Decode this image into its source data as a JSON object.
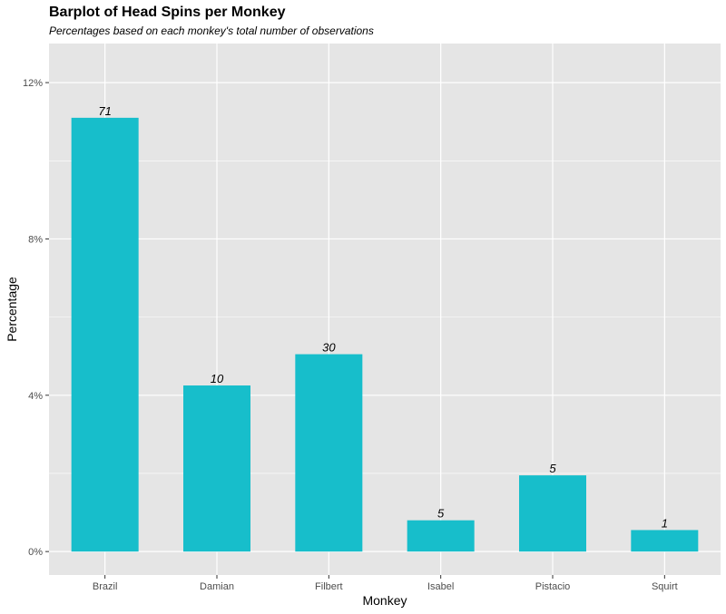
{
  "chart_data": {
    "type": "bar",
    "title": "Barplot of Head Spins per Monkey",
    "subtitle": "Percentages based on each monkey's total number of observations",
    "xlabel": "Monkey",
    "ylabel": "Percentage",
    "categories": [
      "Brazil",
      "Damian",
      "Filbert",
      "Isabel",
      "Pistacio",
      "Squirt"
    ],
    "values": [
      11.1,
      4.25,
      5.05,
      0.8,
      1.95,
      0.55
    ],
    "data_labels": [
      "71",
      "10",
      "30",
      "5",
      "5",
      "1"
    ],
    "ylim": [
      -0.6,
      13.0
    ],
    "yticks": [
      0,
      4,
      8,
      12
    ],
    "ytick_labels": [
      "0%",
      "4%",
      "8%",
      "12%"
    ],
    "grid": true,
    "legend": "none",
    "colors": {
      "bar": "#17BECB",
      "panel": "#E5E5E5",
      "grid": "#FFFFFF"
    }
  }
}
